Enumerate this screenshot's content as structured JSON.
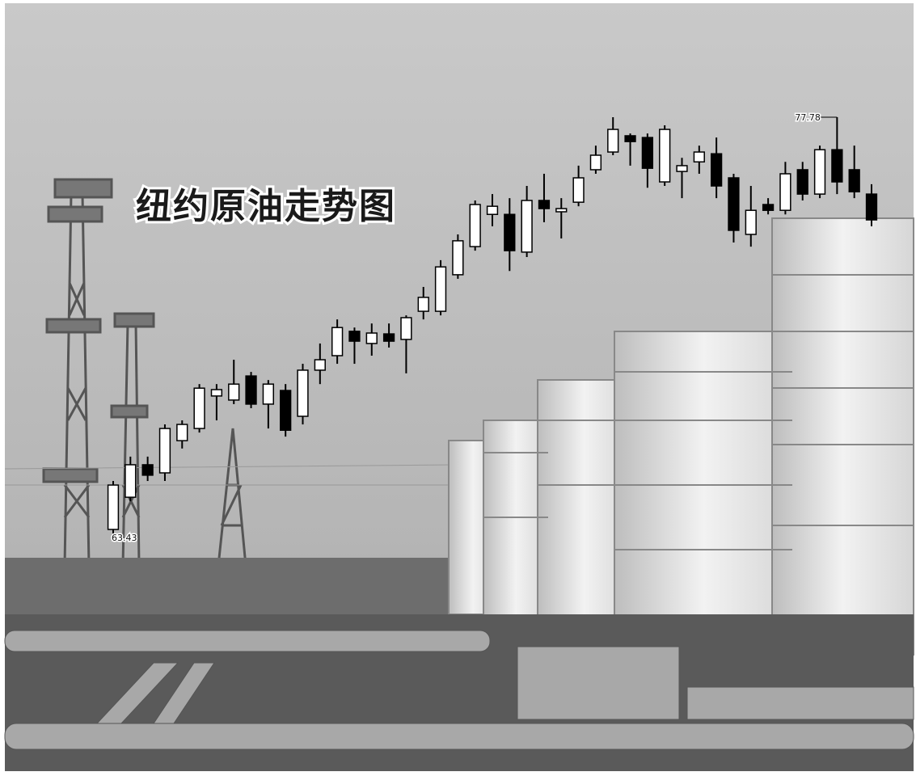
{
  "chart_data": {
    "type": "candlestick",
    "title": "纽约原油走势图",
    "open": [
      63.57,
      64.68,
      65.8,
      65.52,
      66.63,
      67.05,
      68.17,
      68.03,
      68.86,
      67.89,
      68.36,
      67.47,
      69.06,
      69.56,
      70.4,
      69.98,
      70.31,
      70.12,
      71.09,
      71.09,
      72.35,
      73.32,
      74.43,
      74.43,
      73.13,
      74.91,
      74.52,
      74.85,
      75.97,
      76.58,
      77.14,
      77.08,
      75.55,
      75.91,
      76.24,
      76.52,
      75.69,
      73.74,
      74.77,
      74.57,
      75.97,
      75.13,
      76.66,
      75.97,
      75.13
    ],
    "high": [
      65.24,
      66.08,
      66.08,
      67.19,
      67.33,
      68.58,
      68.58,
      69.42,
      69.0,
      68.72,
      68.58,
      69.28,
      69.98,
      70.81,
      70.53,
      70.67,
      70.67,
      70.95,
      71.93,
      72.85,
      73.74,
      74.91,
      75.13,
      74.99,
      75.41,
      75.83,
      74.99,
      76.11,
      76.8,
      77.78,
      77.22,
      77.22,
      77.5,
      76.38,
      76.8,
      77.08,
      75.83,
      75.41,
      74.99,
      76.24,
      76.24,
      76.8,
      77.78,
      76.8,
      75.47
    ],
    "low": [
      63.43,
      64.54,
      65.24,
      65.24,
      66.36,
      66.91,
      67.33,
      67.89,
      67.75,
      67.05,
      66.77,
      67.19,
      68.58,
      69.28,
      69.28,
      69.56,
      69.84,
      68.95,
      70.81,
      70.95,
      72.21,
      73.18,
      74.02,
      72.48,
      72.96,
      74.16,
      73.6,
      74.71,
      75.83,
      76.47,
      76.11,
      75.35,
      75.41,
      74.99,
      75.83,
      74.99,
      73.46,
      73.32,
      74.43,
      74.43,
      74.91,
      74.99,
      75.13,
      74.99,
      74.02
    ],
    "close": [
      65.1,
      65.8,
      65.44,
      67.05,
      67.19,
      68.44,
      68.39,
      68.58,
      67.89,
      68.58,
      66.99,
      69.06,
      69.42,
      70.53,
      70.06,
      70.34,
      70.06,
      70.87,
      71.57,
      72.62,
      73.52,
      74.77,
      74.71,
      73.18,
      74.91,
      74.63,
      74.63,
      75.69,
      76.47,
      77.36,
      76.94,
      76.02,
      77.36,
      76.11,
      76.58,
      75.41,
      73.88,
      74.57,
      74.57,
      75.83,
      75.13,
      76.66,
      75.55,
      75.21,
      74.24
    ],
    "up_color": "#ffffff",
    "down_color": "#000000",
    "annotations": [
      {
        "text": "63.43"
      },
      {
        "text": "77.78"
      }
    ]
  }
}
